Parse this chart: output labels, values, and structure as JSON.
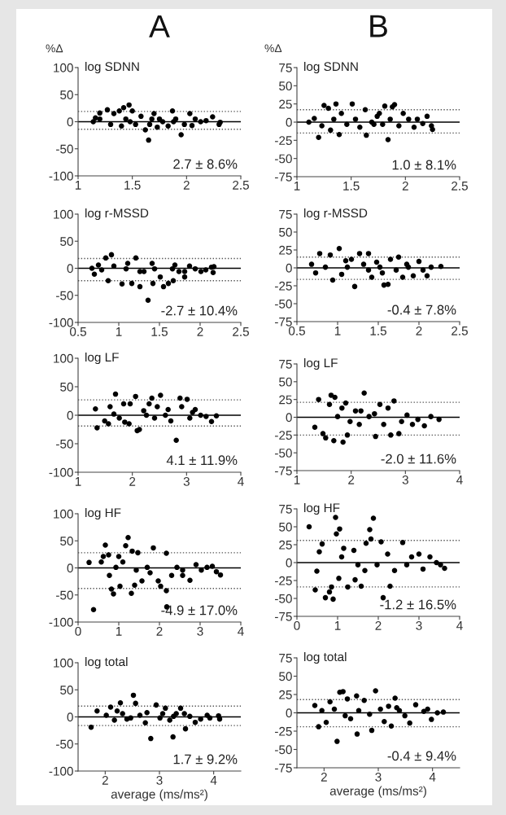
{
  "chart_data": [
    {
      "type": "scatter",
      "subtitle": "A",
      "title": "log SDNN",
      "ylabel": "%Δ",
      "color": "#000000",
      "marker": "circle",
      "xlim": [
        1,
        2.5
      ],
      "xticks": [
        1,
        1.5,
        2,
        2.5
      ],
      "ylim": [
        -100,
        100
      ],
      "yticks": [
        -100,
        -50,
        0,
        50,
        100
      ],
      "ref_lines": [
        {
          "axis": "y",
          "value": 0,
          "line_style": "solid",
          "color": "#000000"
        },
        {
          "axis": "y",
          "value": 19,
          "line_style": "dotted",
          "color": "#555555"
        },
        {
          "axis": "y",
          "value": -14,
          "line_style": "dotted",
          "color": "#555555"
        }
      ],
      "annotations": [
        "2.7 ± 8.6%"
      ],
      "x": [
        1.14,
        1.16,
        1.2,
        1.27,
        1.33,
        1.38,
        1.42,
        1.47,
        1.5,
        1.3,
        1.4,
        1.48,
        1.58,
        1.62,
        1.65,
        1.68,
        1.73,
        1.78,
        1.83,
        1.87,
        1.9,
        1.95,
        1.98,
        2.03,
        2.08,
        2.13,
        2.18,
        2.24,
        2.3,
        2.31,
        1.2,
        1.53,
        1.7,
        1.88,
        1.75,
        1.44,
        1.66,
        2.05
      ],
      "values": [
        0,
        7,
        16,
        22,
        15,
        20,
        26,
        31,
        20,
        -5,
        -8,
        0,
        10,
        -15,
        -34,
        5,
        -10,
        0,
        -8,
        20,
        5,
        -24,
        -5,
        15,
        5,
        0,
        2,
        9,
        -5,
        -1,
        5,
        -5,
        15,
        0,
        5,
        5,
        -5,
        -7
      ]
    },
    {
      "type": "scatter",
      "subtitle": "B",
      "title": "log SDNN",
      "ylabel": "%Δ",
      "color": "#000000",
      "marker": "circle",
      "xlim": [
        1,
        2.5
      ],
      "xticks": [
        1,
        1.5,
        2,
        2.5
      ],
      "ylim": [
        -75,
        75
      ],
      "yticks": [
        -75,
        -50,
        -25,
        0,
        25,
        50,
        75
      ],
      "ref_lines": [
        {
          "axis": "y",
          "value": 0,
          "line_style": "solid",
          "color": "#000000"
        },
        {
          "axis": "y",
          "value": 17,
          "line_style": "dotted",
          "color": "#555555"
        },
        {
          "axis": "y",
          "value": -15,
          "line_style": "dotted",
          "color": "#555555"
        }
      ],
      "annotations": [
        "1.0 ± 8.1%"
      ],
      "x": [
        1.11,
        1.16,
        1.2,
        1.23,
        1.25,
        1.29,
        1.31,
        1.36,
        1.39,
        1.41,
        1.46,
        1.51,
        1.54,
        1.58,
        1.63,
        1.64,
        1.69,
        1.74,
        1.79,
        1.81,
        1.84,
        1.88,
        1.9,
        1.94,
        1.98,
        2.03,
        2.08,
        2.11,
        2.16,
        2.2,
        2.24,
        2.25,
        1.71,
        1.86,
        1.34,
        1.76
      ],
      "values": [
        0,
        5,
        -21,
        -5,
        23,
        19,
        -11,
        25,
        -17,
        12,
        -3,
        25,
        4,
        -7,
        17,
        -18,
        0,
        8,
        -3,
        22,
        -24,
        21,
        24,
        -5,
        12,
        4,
        -7,
        4,
        -2,
        8,
        -5,
        -10,
        -3,
        4,
        4,
        12
      ]
    },
    {
      "type": "scatter",
      "title": "log r-MSSD",
      "color": "#000000",
      "marker": "circle",
      "xlim": [
        0.5,
        2.5
      ],
      "xticks": [
        0.5,
        1,
        1.5,
        2,
        2.5
      ],
      "ylim": [
        -100,
        100
      ],
      "yticks": [
        -100,
        -50,
        0,
        50,
        100
      ],
      "ref_lines": [
        {
          "axis": "y",
          "value": 0,
          "line_style": "solid",
          "color": "#000000"
        },
        {
          "axis": "y",
          "value": 18,
          "line_style": "dotted",
          "color": "#555555"
        },
        {
          "axis": "y",
          "value": -23,
          "line_style": "dotted",
          "color": "#555555"
        }
      ],
      "annotations": [
        "-2.7 ± 10.4%"
      ],
      "x": [
        0.67,
        0.7,
        0.75,
        0.84,
        0.87,
        0.91,
        0.94,
        1.04,
        1.09,
        1.16,
        1.21,
        1.26,
        1.31,
        1.36,
        1.41,
        1.42,
        1.51,
        1.55,
        1.61,
        1.66,
        1.69,
        1.74,
        1.81,
        1.87,
        1.94,
        2.01,
        2.07,
        2.14,
        2.17,
        2.16,
        1.11,
        1.26,
        1.44,
        1.67,
        0.79,
        1.81
      ],
      "values": [
        0,
        -11,
        6,
        19,
        -23,
        25,
        4,
        -29,
        -1,
        -28,
        19,
        -34,
        -6,
        -59,
        9,
        -28,
        -16,
        -34,
        -28,
        -1,
        6,
        -6,
        -16,
        4,
        -1,
        -6,
        -3,
        2,
        3,
        -8,
        9,
        -6,
        -1,
        -23,
        -3,
        -6
      ]
    },
    {
      "type": "scatter",
      "title": "log r-MSSD",
      "color": "#000000",
      "marker": "circle",
      "xlim": [
        0.5,
        2.5
      ],
      "xticks": [
        0.5,
        1,
        1.5,
        2,
        2.5
      ],
      "ylim": [
        -75,
        75
      ],
      "yticks": [
        -75,
        -50,
        -25,
        0,
        25,
        50,
        75
      ],
      "ref_lines": [
        {
          "axis": "y",
          "value": 0,
          "line_style": "solid",
          "color": "#000000"
        },
        {
          "axis": "y",
          "value": 15,
          "line_style": "dotted",
          "color": "#555555"
        },
        {
          "axis": "y",
          "value": -16,
          "line_style": "dotted",
          "color": "#555555"
        }
      ],
      "annotations": [
        "-0.4 ± 7.8%"
      ],
      "x": [
        0.68,
        0.73,
        0.78,
        0.85,
        0.91,
        0.94,
        1.02,
        1.05,
        1.12,
        1.17,
        1.21,
        1.27,
        1.32,
        1.38,
        1.42,
        1.48,
        1.55,
        1.57,
        1.62,
        1.65,
        1.72,
        1.75,
        1.8,
        1.87,
        1.93,
        2.0,
        2.05,
        2.1,
        2.15,
        2.27,
        1.1,
        1.38,
        1.52,
        1.85
      ],
      "values": [
        5,
        -7,
        20,
        1,
        18,
        -17,
        27,
        -9,
        1,
        12,
        -26,
        20,
        5,
        20,
        -13,
        8,
        -7,
        -24,
        -23,
        12,
        -3,
        15,
        -13,
        1,
        -11,
        9,
        -3,
        -11,
        1,
        2,
        10,
        -3,
        1,
        5
      ]
    },
    {
      "type": "scatter",
      "title": "log LF",
      "color": "#000000",
      "marker": "circle",
      "xlim": [
        1,
        4
      ],
      "xticks": [
        1,
        2,
        3,
        4
      ],
      "ylim": [
        -100,
        100
      ],
      "yticks": [
        -100,
        -50,
        0,
        50,
        100
      ],
      "ref_lines": [
        {
          "axis": "y",
          "value": 0,
          "line_style": "solid",
          "color": "#000000"
        },
        {
          "axis": "y",
          "value": 27,
          "line_style": "dotted",
          "color": "#555555"
        },
        {
          "axis": "y",
          "value": -19,
          "line_style": "dotted",
          "color": "#555555"
        }
      ],
      "annotations": [
        "4.1 ± 11.9%"
      ],
      "x": [
        1.32,
        1.35,
        1.49,
        1.59,
        1.69,
        1.76,
        1.84,
        1.94,
        2.06,
        2.09,
        2.13,
        2.21,
        2.31,
        2.41,
        2.52,
        2.61,
        2.71,
        2.81,
        2.88,
        3.01,
        3.06,
        3.16,
        3.26,
        3.36,
        3.46,
        3.55,
        1.66,
        1.86,
        2.26,
        2.46,
        2.66,
        2.91,
        3.11,
        1.96,
        2.36,
        1.56
      ],
      "values": [
        11,
        -22,
        -10,
        15,
        37,
        -5,
        20,
        -15,
        33,
        -27,
        -25,
        8,
        20,
        -5,
        35,
        0,
        -10,
        -44,
        30,
        28,
        -5,
        10,
        0,
        -2,
        -11,
        -1,
        2,
        -12,
        0,
        15,
        10,
        15,
        5,
        20,
        30,
        -15
      ]
    },
    {
      "type": "scatter",
      "title": "log LF",
      "color": "#000000",
      "marker": "circle",
      "xlim": [
        1,
        4
      ],
      "xticks": [
        1,
        2,
        3,
        4
      ],
      "ylim": [
        -75,
        75
      ],
      "yticks": [
        -75,
        -50,
        -25,
        0,
        25,
        50,
        75
      ],
      "ref_lines": [
        {
          "axis": "y",
          "value": 0,
          "line_style": "solid",
          "color": "#000000"
        },
        {
          "axis": "y",
          "value": 21,
          "line_style": "dotted",
          "color": "#555555"
        },
        {
          "axis": "y",
          "value": -25,
          "line_style": "dotted",
          "color": "#555555"
        }
      ],
      "annotations": [
        "-2.0 ± 11.6%"
      ],
      "x": [
        1.33,
        1.4,
        1.48,
        1.53,
        1.6,
        1.63,
        1.68,
        1.7,
        1.75,
        1.85,
        1.9,
        1.93,
        1.98,
        2.08,
        2.15,
        2.24,
        2.33,
        2.45,
        2.53,
        2.6,
        2.73,
        2.79,
        2.88,
        2.93,
        3.03,
        3.13,
        3.23,
        3.35,
        3.47,
        3.62,
        1.83,
        2.43,
        2.68,
        2.18
      ],
      "values": [
        -14,
        25,
        -23,
        -29,
        18,
        31,
        -33,
        28,
        1,
        -35,
        20,
        -25,
        -6,
        9,
        -10,
        34,
        1,
        -27,
        18,
        -10,
        -25,
        23,
        -23,
        -6,
        3,
        -10,
        -3,
        -12,
        1,
        -3,
        13,
        5,
        13,
        9
      ]
    },
    {
      "type": "scatter",
      "title": "log HF",
      "color": "#000000",
      "marker": "circle",
      "xlim": [
        0,
        4
      ],
      "xticks": [
        0,
        1,
        2,
        3,
        4
      ],
      "ylim": [
        -100,
        100
      ],
      "yticks": [
        -100,
        -50,
        0,
        50,
        100
      ],
      "ref_lines": [
        {
          "axis": "y",
          "value": 0,
          "line_style": "solid",
          "color": "#000000"
        },
        {
          "axis": "y",
          "value": 28,
          "line_style": "dotted",
          "color": "#555555"
        },
        {
          "axis": "y",
          "value": -38,
          "line_style": "dotted",
          "color": "#555555"
        }
      ],
      "annotations": [
        "-4.9 ± 17.0%"
      ],
      "x": [
        0.27,
        0.38,
        0.57,
        0.62,
        0.67,
        0.75,
        0.77,
        0.82,
        0.87,
        0.93,
        1.0,
        1.03,
        1.1,
        1.17,
        1.23,
        1.31,
        1.33,
        1.39,
        1.47,
        1.57,
        1.7,
        1.85,
        1.97,
        2.03,
        2.17,
        2.18,
        2.17,
        2.3,
        2.43,
        2.57,
        2.75,
        2.9,
        3.03,
        3.17,
        3.3,
        3.4,
        3.5,
        1.77,
        1.43,
        2.57
      ],
      "values": [
        10,
        -77,
        11,
        21,
        42,
        24,
        -14,
        -39,
        -48,
        1,
        21,
        -34,
        11,
        41,
        56,
        -47,
        31,
        -32,
        28,
        -24,
        1,
        37,
        -24,
        -34,
        -42,
        -72,
        27,
        -14,
        1,
        -14,
        -23,
        6,
        -4,
        1,
        3,
        -7,
        -13,
        -9,
        -4,
        -4
      ]
    },
    {
      "type": "scatter",
      "title": "log HF",
      "color": "#000000",
      "marker": "circle",
      "xlim": [
        0,
        4
      ],
      "xticks": [
        0,
        1,
        2,
        3,
        4
      ],
      "ylim": [
        -75,
        75
      ],
      "yticks": [
        -75,
        -50,
        -25,
        0,
        25,
        50,
        75
      ],
      "ref_lines": [
        {
          "axis": "y",
          "value": 0,
          "line_style": "solid",
          "color": "#000000"
        },
        {
          "axis": "y",
          "value": 31,
          "line_style": "dotted",
          "color": "#555555"
        },
        {
          "axis": "y",
          "value": -34,
          "line_style": "dotted",
          "color": "#555555"
        }
      ],
      "annotations": [
        "-1.2 ± 16.5%"
      ],
      "x": [
        0.3,
        0.45,
        0.49,
        0.55,
        0.62,
        0.7,
        0.8,
        0.85,
        0.89,
        0.95,
        0.97,
        1.05,
        1.03,
        1.1,
        1.15,
        1.25,
        1.4,
        1.43,
        1.58,
        1.67,
        1.7,
        1.79,
        1.82,
        1.88,
        1.97,
        2.07,
        2.12,
        2.23,
        2.29,
        2.4,
        2.6,
        2.7,
        2.82,
        3.0,
        3.1,
        3.27,
        3.43,
        3.53,
        3.63,
        1.5
      ],
      "values": [
        50,
        -38,
        -12,
        15,
        26,
        -49,
        -41,
        -34,
        -51,
        63,
        40,
        47,
        -22,
        8,
        20,
        -34,
        17,
        -24,
        -33,
        -11,
        27,
        46,
        33,
        62,
        -3,
        29,
        -49,
        12,
        -33,
        -11,
        28,
        -3,
        8,
        12,
        -9,
        8,
        0,
        -3,
        -8,
        -3
      ]
    },
    {
      "type": "scatter",
      "title": "log total",
      "xlabel": "average (ms/ms²)",
      "color": "#000000",
      "marker": "circle",
      "xlim": [
        1.5,
        4.5
      ],
      "xticks": [
        2,
        3,
        4
      ],
      "ylim": [
        -100,
        100
      ],
      "yticks": [
        -100,
        -50,
        0,
        50,
        100
      ],
      "ref_lines": [
        {
          "axis": "y",
          "value": 0,
          "line_style": "solid",
          "color": "#000000"
        },
        {
          "axis": "y",
          "value": 20,
          "line_style": "dotted",
          "color": "#555555"
        },
        {
          "axis": "y",
          "value": -16,
          "line_style": "dotted",
          "color": "#555555"
        }
      ],
      "annotations": [
        "1.7 ± 9.2%"
      ],
      "x": [
        1.74,
        1.85,
        2.02,
        2.1,
        2.17,
        2.28,
        2.4,
        2.52,
        2.56,
        2.64,
        2.74,
        2.84,
        2.94,
        3.01,
        3.11,
        3.19,
        3.25,
        3.31,
        3.39,
        3.48,
        3.56,
        3.66,
        3.76,
        3.88,
        3.93,
        4.09,
        4.11,
        2.32,
        2.47,
        2.77,
        3.06,
        3.26,
        3.46,
        2.22
      ],
      "values": [
        -19,
        11,
        3,
        18,
        -6,
        26,
        -4,
        40,
        25,
        3,
        -11,
        -40,
        22,
        -2,
        16,
        -6,
        -37,
        6,
        16,
        -22,
        1,
        -10,
        -4,
        3,
        -2,
        2,
        -4,
        6,
        -2,
        8,
        6,
        1,
        6,
        11
      ]
    },
    {
      "type": "scatter",
      "title": "log total",
      "xlabel": "average (ms/ms²)",
      "color": "#000000",
      "marker": "circle",
      "xlim": [
        1.5,
        4.5
      ],
      "xticks": [
        2,
        3,
        4
      ],
      "ylim": [
        -75,
        75
      ],
      "yticks": [
        -75,
        -50,
        -25,
        0,
        25,
        50,
        75
      ],
      "ref_lines": [
        {
          "axis": "y",
          "value": 0,
          "line_style": "solid",
          "color": "#000000"
        },
        {
          "axis": "y",
          "value": 18,
          "line_style": "dotted",
          "color": "#555555"
        },
        {
          "axis": "y",
          "value": -19,
          "line_style": "dotted",
          "color": "#555555"
        }
      ],
      "annotations": [
        "-0.4 ± 9.4%"
      ],
      "x": [
        1.83,
        1.9,
        1.96,
        2.04,
        2.11,
        2.24,
        2.29,
        2.35,
        2.43,
        2.49,
        2.6,
        2.61,
        2.74,
        2.84,
        2.88,
        2.95,
        3.04,
        3.11,
        3.24,
        3.31,
        3.39,
        3.49,
        3.58,
        3.69,
        3.84,
        3.91,
        3.98,
        4.09,
        4.2,
        2.19,
        2.39,
        2.64,
        3.19,
        3.34
      ],
      "values": [
        10,
        -19,
        3,
        -13,
        15,
        -39,
        28,
        29,
        19,
        -8,
        23,
        -29,
        17,
        -2,
        -24,
        30,
        5,
        -12,
        -18,
        20,
        3,
        -4,
        -14,
        11,
        2,
        5,
        -9,
        0,
        1,
        5,
        -4,
        3,
        9,
        7
      ]
    }
  ]
}
